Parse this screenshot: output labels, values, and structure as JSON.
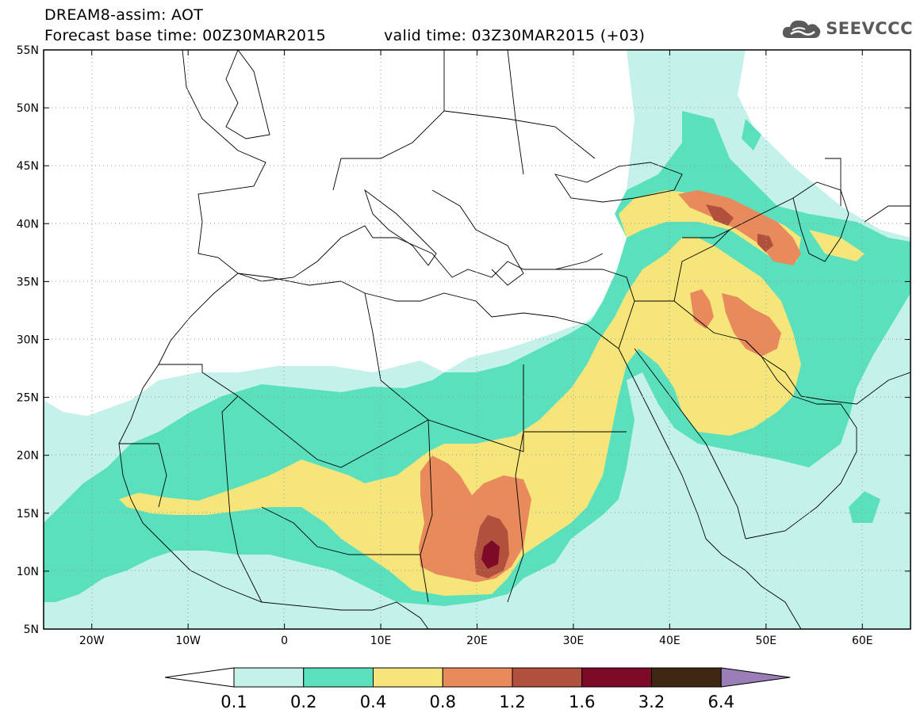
{
  "header": {
    "line1": "DREAM8-assim: AOT",
    "base_time": "Forecast base time: 00Z30MAR2015",
    "valid_time": "valid time: 03Z30MAR2015 (+03)"
  },
  "logo": {
    "text": "SEEVCCC",
    "icon": "cloud-icon"
  },
  "map": {
    "lon_range": [
      -25,
      65
    ],
    "lat_range": [
      5,
      55
    ],
    "x_ticks": [
      {
        "lon": -20,
        "label": "20W"
      },
      {
        "lon": -10,
        "label": "10W"
      },
      {
        "lon": 0,
        "label": "0"
      },
      {
        "lon": 10,
        "label": "10E"
      },
      {
        "lon": 20,
        "label": "20E"
      },
      {
        "lon": 30,
        "label": "30E"
      },
      {
        "lon": 40,
        "label": "40E"
      },
      {
        "lon": 50,
        "label": "50E"
      },
      {
        "lon": 60,
        "label": "60E"
      }
    ],
    "y_ticks": [
      {
        "lat": 55,
        "label": "55N"
      },
      {
        "lat": 50,
        "label": "50N"
      },
      {
        "lat": 45,
        "label": "45N"
      },
      {
        "lat": 40,
        "label": "40N"
      },
      {
        "lat": 35,
        "label": "35N"
      },
      {
        "lat": 30,
        "label": "30N"
      },
      {
        "lat": 25,
        "label": "25N"
      },
      {
        "lat": 20,
        "label": "20N"
      },
      {
        "lat": 15,
        "label": "15N"
      },
      {
        "lat": 10,
        "label": "10N"
      },
      {
        "lat": 5,
        "label": "5N"
      }
    ],
    "grid": "dotted"
  },
  "colorbar": {
    "levels": [
      "0.1",
      "0.2",
      "0.4",
      "0.8",
      "1.2",
      "1.6",
      "3.2",
      "6.4"
    ],
    "colors": [
      "#c4f2ea",
      "#5be0bd",
      "#f6e57a",
      "#e98a5c",
      "#b1503d",
      "#7d0a26",
      "#3f2813",
      "#9b7db8"
    ],
    "under_color": "#ffffff"
  }
}
